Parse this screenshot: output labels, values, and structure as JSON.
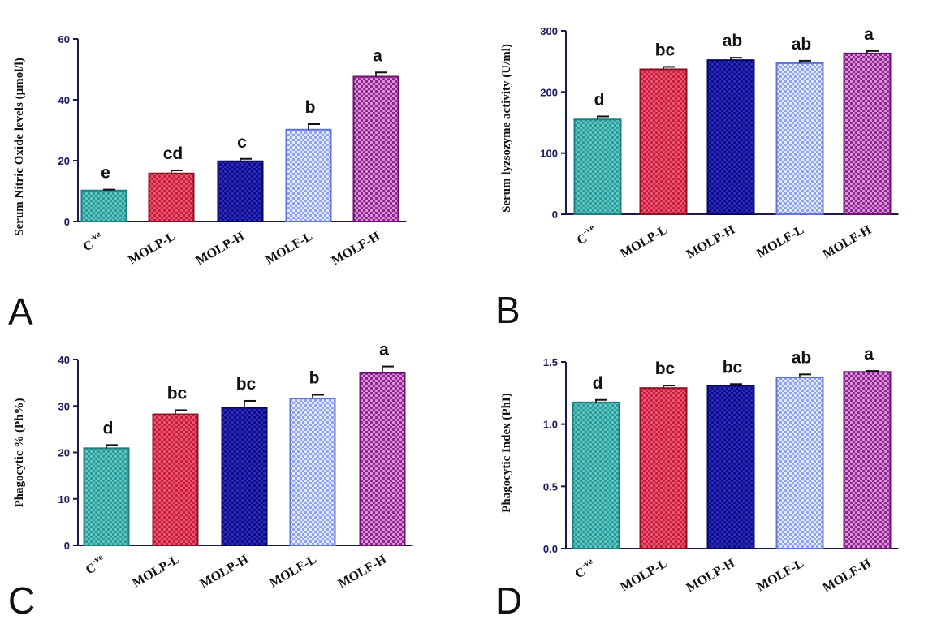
{
  "colors": {
    "axis": "#1a1a4a",
    "bars": [
      {
        "fill": "#2a9a9a",
        "fill2": "#5fc6c0",
        "stroke": "#1f7f80"
      },
      {
        "fill": "#c81d3c",
        "fill2": "#e8566f",
        "stroke": "#8a1026"
      },
      {
        "fill": "#0d0d8c",
        "fill2": "#2c2cb8",
        "stroke": "#06065a"
      },
      {
        "fill": "#8fa2f5",
        "fill2": "#e4eaff",
        "stroke": "#5f73e0"
      },
      {
        "fill": "#8a2b8c",
        "fill2": "#e08ee0",
        "stroke": "#6a1470"
      }
    ]
  },
  "chart_data": [
    {
      "panel": "A",
      "type": "bar",
      "categories": [
        "C",
        "MOLP-L",
        "MOLP-H",
        "MOLF-L",
        "MOLF-H"
      ],
      "category_superscript": "-ve",
      "values": [
        10.2,
        15.8,
        19.8,
        30.2,
        47.6
      ],
      "errors": [
        0.3,
        1.0,
        0.8,
        1.8,
        1.4
      ],
      "significance": [
        "e",
        "cd",
        "c",
        "b",
        "a"
      ],
      "ylabel": "Serum Nitric Oxide levels (µmol/l)",
      "ylim": [
        0,
        60
      ],
      "yticks": [
        "0",
        "20",
        "40",
        "60"
      ],
      "ytick_values": [
        0,
        20,
        40,
        60
      ]
    },
    {
      "panel": "B",
      "type": "bar",
      "categories": [
        "C",
        "MOLP-L",
        "MOLP-H",
        "MOLF-L",
        "MOLF-H"
      ],
      "category_superscript": "-ve",
      "values": [
        155,
        237,
        252,
        247,
        263
      ],
      "errors": [
        5,
        4,
        4,
        4,
        4
      ],
      "significance": [
        "d",
        "bc",
        "ab",
        "ab",
        "a"
      ],
      "ylabel": "Serum lyzsozyme activity (U/ml)",
      "ylim": [
        0,
        300
      ],
      "yticks": [
        "0",
        "100",
        "200",
        "300"
      ],
      "ytick_values": [
        0,
        100,
        200,
        300
      ]
    },
    {
      "panel": "C",
      "type": "bar",
      "categories": [
        "C",
        "MOLP-L",
        "MOLP-H",
        "MOLF-L",
        "MOLF-H"
      ],
      "category_superscript": "-ve",
      "values": [
        20.9,
        28.2,
        29.6,
        31.6,
        37.1
      ],
      "errors": [
        0.7,
        0.9,
        1.5,
        0.8,
        1.4
      ],
      "significance": [
        "d",
        "bc",
        "bc",
        "b",
        "a"
      ],
      "ylabel": "Phagocytic % (Ph%)",
      "ylim": [
        0,
        40
      ],
      "yticks": [
        "0",
        "10",
        "20",
        "30",
        "40"
      ],
      "ytick_values": [
        0,
        10,
        20,
        30,
        40
      ]
    },
    {
      "panel": "D",
      "type": "bar",
      "categories": [
        "C",
        "MOLP-L",
        "MOLP-H",
        "MOLF-L",
        "MOLF-H"
      ],
      "category_superscript": "-ve",
      "values": [
        1.175,
        1.29,
        1.31,
        1.375,
        1.42
      ],
      "errors": [
        0.02,
        0.02,
        0.012,
        0.025,
        0.008
      ],
      "significance": [
        "d",
        "bc",
        "bc",
        "ab",
        "a"
      ],
      "ylabel": "Phagocytic Index (PhI)",
      "ylim": [
        0,
        1.5
      ],
      "yticks": [
        "0.0",
        "0.5",
        "1.0",
        "1.5"
      ],
      "ytick_values": [
        0,
        0.5,
        1.0,
        1.5
      ]
    }
  ]
}
